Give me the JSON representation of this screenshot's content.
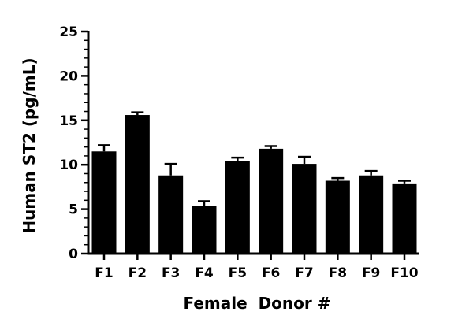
{
  "chart_data": {
    "type": "bar",
    "title": "",
    "xlabel": "Female  Donor #",
    "ylabel": "Human ST2 (pg/mL)",
    "categories": [
      "F1",
      "F2",
      "F3",
      "F4",
      "F5",
      "F6",
      "F7",
      "F8",
      "F9",
      "F10"
    ],
    "values": [
      11.5,
      15.6,
      8.8,
      5.4,
      10.4,
      11.8,
      10.1,
      8.2,
      8.8,
      7.9
    ],
    "error": [
      0.7,
      0.3,
      1.3,
      0.5,
      0.4,
      0.3,
      0.8,
      0.3,
      0.5,
      0.3
    ],
    "ylim": [
      0,
      25
    ],
    "yticks": [
      0,
      5,
      10,
      15,
      20,
      25
    ],
    "grid": false,
    "bar_color": "#000000"
  }
}
